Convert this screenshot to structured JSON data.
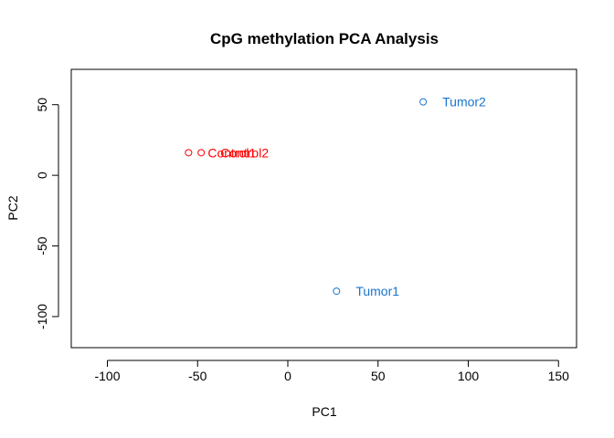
{
  "chart_data": {
    "type": "scatter",
    "title": "CpG methylation PCA Analysis",
    "xlabel": "PC1",
    "ylabel": "PC2",
    "xlim": [
      -120,
      160
    ],
    "ylim": [
      -122,
      75
    ],
    "xticks": [
      -100,
      -50,
      0,
      50,
      100,
      150
    ],
    "yticks": [
      -100,
      -50,
      0,
      50
    ],
    "grid": false,
    "marker": "open-circle",
    "points": [
      {
        "label": "Control1",
        "x": -55,
        "y": 16,
        "color": "#ff0000"
      },
      {
        "label": "Control2",
        "x": -48,
        "y": 16,
        "color": "#ff0000"
      },
      {
        "label": "Tumor1",
        "x": 27,
        "y": -82,
        "color": "#1874cd"
      },
      {
        "label": "Tumor2",
        "x": 75,
        "y": 52,
        "color": "#1874cd"
      }
    ]
  }
}
